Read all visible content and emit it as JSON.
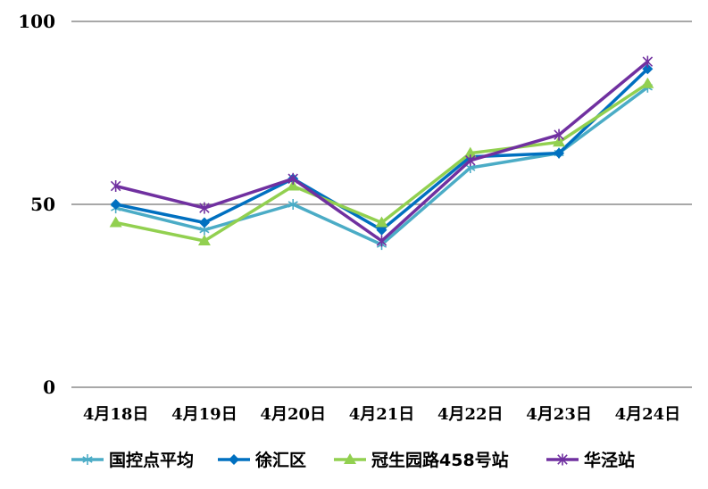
{
  "chart_data": {
    "type": "line",
    "categories": [
      "4月18日",
      "4月19日",
      "4月20日",
      "4月21日",
      "4月22日",
      "4月23日",
      "4月24日"
    ],
    "ylim": [
      0,
      100
    ],
    "yticks": [
      0,
      50,
      100
    ],
    "grid": true,
    "legend_position": "bottom",
    "series": [
      {
        "name": "国控点平均",
        "color": "#4BACC6",
        "marker": "asterisk",
        "values": [
          49,
          43,
          50,
          39,
          60,
          64,
          82
        ]
      },
      {
        "name": "徐汇区",
        "color": "#0070C0",
        "marker": "diamond",
        "values": [
          50,
          45,
          57,
          43,
          63,
          64,
          87
        ]
      },
      {
        "name": "冠生园路458号站",
        "color": "#92D050",
        "marker": "triangle",
        "values": [
          45,
          40,
          55,
          45,
          64,
          67,
          83
        ]
      },
      {
        "name": "华泾站",
        "color": "#7030A0",
        "marker": "star",
        "values": [
          55,
          49,
          57,
          40,
          62,
          69,
          89
        ]
      }
    ]
  }
}
